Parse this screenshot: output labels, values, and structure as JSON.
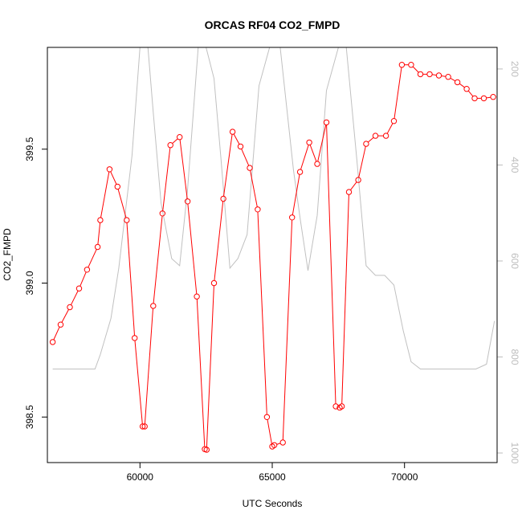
{
  "chart_data": {
    "type": "line",
    "title": "ORCAS RF04 CO2_FMPD",
    "xlabel": "UTC Seconds",
    "ylabel": "CO2_FMPD",
    "xlim": [
      56500,
      73500
    ],
    "ylim": [
      398.33,
      399.88
    ],
    "x_ticks": [
      60000,
      65000,
      70000
    ],
    "y_ticks": [
      398.5,
      399.0,
      399.5
    ],
    "y_tick_labels": [
      "398.5",
      "399.0",
      "399.5"
    ],
    "y2_lim": [
      1020,
      155
    ],
    "y2_ticks": [
      200,
      400,
      600,
      800,
      1000
    ],
    "grid": false,
    "colors": {
      "series": "#ff0000",
      "secondary": "#c0c0c0",
      "frame": "#000000",
      "right_axis": "#bdbdbd"
    },
    "series": [
      {
        "marker": "open-circle",
        "x": [
          56700,
          57000,
          57350,
          57700,
          58000,
          58400,
          58500,
          58850,
          59150,
          59500,
          59800,
          60100,
          60180,
          60500,
          60850,
          61150,
          61500,
          61800,
          62150,
          62450,
          62520,
          62800,
          63150,
          63500,
          63800,
          64150,
          64450,
          64800,
          65000,
          65080,
          65400,
          65750,
          66050,
          66400,
          66700,
          67050,
          67400,
          67550,
          67630,
          67900,
          68250,
          68550,
          68900,
          69300,
          69600,
          69900,
          70250,
          70600,
          70950,
          71300,
          71650,
          72000,
          72350,
          72650,
          73000,
          73350
        ],
        "y": [
          398.78,
          398.845,
          398.91,
          398.98,
          399.05,
          399.135,
          399.235,
          399.425,
          399.36,
          399.235,
          398.795,
          398.465,
          398.465,
          398.915,
          399.26,
          399.515,
          399.545,
          399.305,
          398.95,
          398.38,
          398.378,
          399.0,
          399.315,
          399.565,
          399.51,
          399.43,
          399.275,
          398.5,
          398.39,
          398.395,
          398.405,
          399.245,
          399.415,
          399.525,
          399.445,
          399.6,
          398.54,
          398.535,
          398.54,
          399.34,
          399.385,
          399.52,
          399.55,
          399.55,
          399.605,
          399.815,
          399.815,
          399.78,
          399.78,
          399.775,
          399.77,
          399.75,
          399.725,
          399.69,
          399.69,
          399.695
        ]
      },
      {
        "axis": "right",
        "x": [
          56700,
          58300,
          58500,
          58900,
          59200,
          59700,
          60000,
          60300,
          60500,
          60800,
          61200,
          61500,
          61800,
          62200,
          62500,
          62800,
          63050,
          63400,
          63700,
          64050,
          64500,
          64900,
          65300,
          65800,
          66050,
          66350,
          66700,
          67050,
          67500,
          67800,
          68200,
          68550,
          68900,
          69250,
          69600,
          69950,
          70250,
          70600,
          71000,
          72000,
          72700,
          73100,
          73400
        ],
        "y": [
          825,
          825,
          795,
          720,
          615,
          380,
          155,
          155,
          290,
          480,
          595,
          610,
          450,
          155,
          155,
          220,
          380,
          615,
          595,
          545,
          235,
          155,
          155,
          410,
          510,
          620,
          505,
          245,
          155,
          155,
          390,
          610,
          630,
          630,
          650,
          745,
          810,
          825,
          825,
          825,
          825,
          815,
          725
        ]
      }
    ]
  }
}
